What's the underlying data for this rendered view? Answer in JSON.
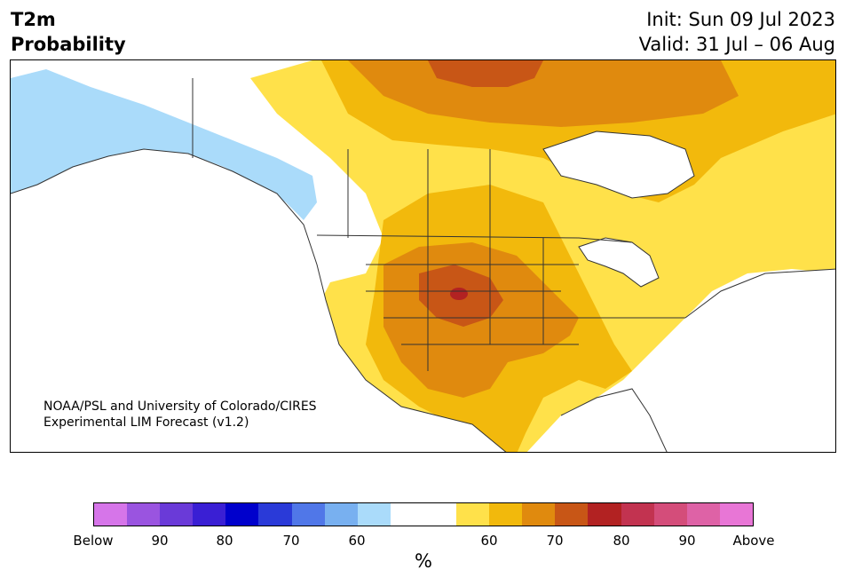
{
  "title": {
    "left_line1": "T2m",
    "left_line2": "Probability",
    "init": "Init: Sun 09 Jul 2023",
    "valid": "Valid: 31 Jul – 06 Aug"
  },
  "credit": {
    "line1": "NOAA/PSL and University of Colorado/CIRES",
    "line2": "Experimental LIM Forecast (v1.2)"
  },
  "colorbar": {
    "colors": [
      "#d675e9",
      "#9a54e0",
      "#6a3ad8",
      "#3a1fd4",
      "#0000cc",
      "#2a3ad8",
      "#5077e8",
      "#78b0f0",
      "#aadbfa",
      "#ffffff",
      "#ffffff",
      "#ffe14a",
      "#f2b90c",
      "#e08a0e",
      "#c85616",
      "#b22222",
      "#c23350",
      "#d44d7a",
      "#de62a6",
      "#e876d6"
    ],
    "labels": [
      "Below",
      "90",
      "80",
      "70",
      "60",
      "60",
      "70",
      "80",
      "90",
      "Above"
    ],
    "unit": "%"
  },
  "map_colors": {
    "land": "#ffffff",
    "cold_60": "#aadbfa",
    "warm_60": "#ffe14a",
    "warm_65": "#f2b90c",
    "warm_70": "#e08a0e",
    "warm_75": "#c85616",
    "warm_80": "#b22222",
    "water": "#ffffff",
    "border": "#333333"
  }
}
